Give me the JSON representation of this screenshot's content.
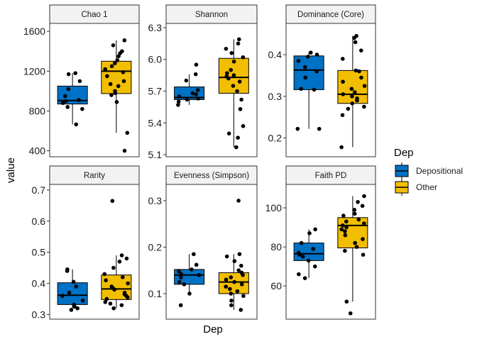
{
  "figure": {
    "y_axis_title": "value",
    "x_axis_title": "Dep",
    "legend": {
      "title": "Dep",
      "placement": "right",
      "entries": [
        {
          "label": "Depositional",
          "color": "#0072C6"
        },
        {
          "label": "Other",
          "color": "#F2BE00"
        }
      ]
    }
  },
  "chart_data": [
    {
      "type": "box",
      "title": "Chao 1",
      "ylim": [
        340,
        1680
      ],
      "yticks": [
        {
          "v": 400,
          "label": "400"
        },
        {
          "v": 800,
          "label": "800"
        },
        {
          "v": 1200,
          "label": "1200"
        },
        {
          "v": 1600,
          "label": "1600"
        }
      ],
      "groups": [
        {
          "name": "Depositional",
          "color": "#0072C6",
          "box": {
            "whisker_low": 665,
            "q1": 870,
            "median": 905,
            "q3": 1050,
            "whisker_high": 1180
          },
          "points": [
            665,
            820,
            840,
            880,
            900,
            910,
            950,
            1020,
            1100,
            1170,
            1180
          ]
        },
        {
          "name": "Other",
          "color": "#F2BE00",
          "box": {
            "whisker_low": 580,
            "q1": 975,
            "median": 1200,
            "q3": 1300,
            "whisker_high": 1510
          },
          "points": [
            400,
            580,
            890,
            960,
            980,
            1000,
            1050,
            1070,
            1100,
            1150,
            1190,
            1220,
            1250,
            1280,
            1310,
            1350,
            1380,
            1400,
            1460,
            1510
          ]
        }
      ]
    },
    {
      "type": "box",
      "title": "Shannon",
      "ylim": [
        5.08,
        6.34
      ],
      "yticks": [
        {
          "v": 5.1,
          "label": "5.1"
        },
        {
          "v": 5.4,
          "label": "5.4"
        },
        {
          "v": 5.7,
          "label": "5.7"
        },
        {
          "v": 6.0,
          "label": "6.0"
        },
        {
          "v": 6.3,
          "label": "6.3"
        }
      ],
      "groups": [
        {
          "name": "Depositional",
          "color": "#0072C6",
          "box": {
            "whisker_low": 5.57,
            "q1": 5.62,
            "median": 5.64,
            "q3": 5.74,
            "whisker_high": 5.86
          },
          "points": [
            5.57,
            5.6,
            5.62,
            5.63,
            5.65,
            5.67,
            5.68,
            5.71,
            5.8,
            5.86,
            5.95
          ]
        },
        {
          "name": "Other",
          "color": "#F2BE00",
          "box": {
            "whisker_low": 5.17,
            "q1": 5.68,
            "median": 5.83,
            "q3": 6.01,
            "whisker_high": 6.19
          },
          "points": [
            5.17,
            5.26,
            5.3,
            5.37,
            5.53,
            5.62,
            5.7,
            5.75,
            5.79,
            5.82,
            5.84,
            5.85,
            5.87,
            5.9,
            5.98,
            6.02,
            6.06,
            6.1,
            6.15,
            6.19
          ]
        }
      ]
    },
    {
      "type": "box",
      "title": "Dominance (Core)",
      "ylim": [
        0.155,
        0.475
      ],
      "yticks": [
        {
          "v": 0.2,
          "label": "0.2"
        },
        {
          "v": 0.3,
          "label": "0.3"
        },
        {
          "v": 0.4,
          "label": "0.4"
        }
      ],
      "groups": [
        {
          "name": "Depositional",
          "color": "#0072C6",
          "box": {
            "whisker_low": 0.222,
            "q1": 0.316,
            "median": 0.363,
            "q3": 0.397,
            "whisker_high": 0.405
          },
          "points": [
            0.222,
            0.222,
            0.316,
            0.318,
            0.345,
            0.36,
            0.37,
            0.385,
            0.395,
            0.4,
            0.405
          ]
        },
        {
          "name": "Other",
          "color": "#F2BE00",
          "box": {
            "whisker_low": 0.178,
            "q1": 0.283,
            "median": 0.305,
            "q3": 0.362,
            "whisker_high": 0.445
          },
          "points": [
            0.178,
            0.255,
            0.27,
            0.275,
            0.283,
            0.29,
            0.295,
            0.3,
            0.305,
            0.31,
            0.318,
            0.325,
            0.335,
            0.345,
            0.36,
            0.362,
            0.39,
            0.41,
            0.43,
            0.44,
            0.445
          ]
        }
      ]
    },
    {
      "type": "box",
      "title": "Rarity",
      "ylim": [
        0.285,
        0.718
      ],
      "yticks": [
        {
          "v": 0.3,
          "label": "0.3"
        },
        {
          "v": 0.4,
          "label": "0.4"
        },
        {
          "v": 0.5,
          "label": "0.5"
        },
        {
          "v": 0.6,
          "label": "0.6"
        },
        {
          "v": 0.7,
          "label": "0.7"
        }
      ],
      "groups": [
        {
          "name": "Depositional",
          "color": "#0072C6",
          "box": {
            "whisker_low": 0.315,
            "q1": 0.332,
            "median": 0.362,
            "q3": 0.402,
            "whisker_high": 0.445
          },
          "points": [
            0.315,
            0.32,
            0.325,
            0.332,
            0.345,
            0.36,
            0.37,
            0.39,
            0.405,
            0.44,
            0.445
          ]
        },
        {
          "name": "Other",
          "color": "#F2BE00",
          "box": {
            "whisker_low": 0.32,
            "q1": 0.348,
            "median": 0.382,
            "q3": 0.427,
            "whisker_high": 0.49
          },
          "points": [
            0.32,
            0.33,
            0.335,
            0.34,
            0.35,
            0.355,
            0.36,
            0.365,
            0.37,
            0.38,
            0.385,
            0.39,
            0.4,
            0.41,
            0.42,
            0.43,
            0.45,
            0.47,
            0.48,
            0.49,
            0.665
          ]
        }
      ]
    },
    {
      "type": "box",
      "title": "Evenness (Simpson)",
      "ylim": [
        0.045,
        0.335
      ],
      "yticks": [
        {
          "v": 0.1,
          "label": "0.1"
        },
        {
          "v": 0.2,
          "label": "0.2"
        },
        {
          "v": 0.3,
          "label": "0.3"
        }
      ],
      "groups": [
        {
          "name": "Depositional",
          "color": "#0072C6",
          "box": {
            "whisker_low": 0.1,
            "q1": 0.12,
            "median": 0.14,
            "q3": 0.152,
            "whisker_high": 0.185
          },
          "points": [
            0.075,
            0.1,
            0.12,
            0.125,
            0.135,
            0.14,
            0.142,
            0.148,
            0.152,
            0.162,
            0.185
          ]
        },
        {
          "name": "Other",
          "color": "#F2BE00",
          "box": {
            "whisker_low": 0.065,
            "q1": 0.1,
            "median": 0.125,
            "q3": 0.145,
            "whisker_high": 0.185
          },
          "points": [
            0.065,
            0.075,
            0.085,
            0.095,
            0.1,
            0.105,
            0.11,
            0.115,
            0.12,
            0.125,
            0.13,
            0.135,
            0.14,
            0.145,
            0.15,
            0.16,
            0.17,
            0.18,
            0.185,
            0.3
          ]
        }
      ]
    },
    {
      "type": "box",
      "title": "Faith PD",
      "ylim": [
        43,
        112
      ],
      "yticks": [
        {
          "v": 60,
          "label": "60"
        },
        {
          "v": 80,
          "label": "80"
        },
        {
          "v": 100,
          "label": "100"
        }
      ],
      "groups": [
        {
          "name": "Depositional",
          "color": "#0072C6",
          "box": {
            "whisker_low": 64,
            "q1": 73,
            "median": 76.5,
            "q3": 82,
            "whisker_high": 89
          },
          "points": [
            64,
            66,
            70,
            73,
            75,
            76,
            77,
            79,
            82,
            87,
            89
          ]
        },
        {
          "name": "Other",
          "color": "#F2BE00",
          "box": {
            "whisker_low": 52,
            "q1": 79.5,
            "median": 91,
            "q3": 95,
            "whisker_high": 106
          },
          "points": [
            46,
            52,
            76,
            78,
            80,
            82,
            84,
            86,
            88,
            89,
            90,
            91,
            92,
            93,
            94,
            96,
            97,
            99,
            101,
            103,
            106
          ]
        }
      ]
    }
  ]
}
